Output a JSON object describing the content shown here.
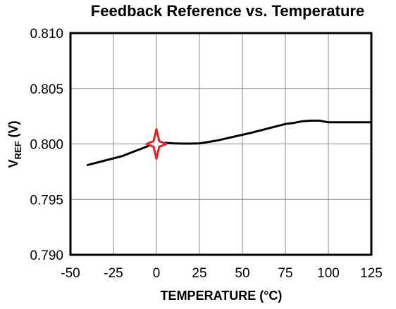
{
  "chart_data": {
    "type": "line",
    "title": "Feedback Reference vs. Temperature",
    "xlabel": "TEMPERATURE   (°C)",
    "ylabel": {
      "main": "V",
      "subscript": "REF",
      "unit": " (V)"
    },
    "xlim": [
      -50,
      125
    ],
    "ylim": [
      0.79,
      0.81
    ],
    "x_ticks": [
      -50,
      -25,
      0,
      25,
      50,
      75,
      100,
      125
    ],
    "x_tick_labels": [
      "-50",
      "-25",
      "0",
      "25",
      "50",
      "75",
      "100",
      "125"
    ],
    "y_ticks": [
      0.79,
      0.795,
      0.8,
      0.805,
      0.81
    ],
    "y_tick_labels": [
      "0.790",
      "0.795",
      "0.800",
      "0.805",
      "0.810"
    ],
    "grid": true,
    "series": [
      {
        "x": [
          -40,
          -30,
          -20,
          -10,
          0,
          5,
          10,
          15,
          20,
          25,
          35,
          45,
          55,
          65,
          75,
          80,
          85,
          90,
          95,
          100,
          105,
          115,
          125
        ],
        "y": [
          0.7981,
          0.7985,
          0.7989,
          0.7995,
          0.8001,
          0.8001,
          0.80005,
          0.80003,
          0.80003,
          0.80005,
          0.8003,
          0.80065,
          0.801,
          0.8014,
          0.8018,
          0.8019,
          0.80205,
          0.8021,
          0.8021,
          0.80195,
          0.80195,
          0.80195,
          0.80195
        ],
        "color": "#000000"
      }
    ],
    "marker": {
      "x": 0,
      "y": 0.8,
      "color": "#ee1c24"
    }
  }
}
